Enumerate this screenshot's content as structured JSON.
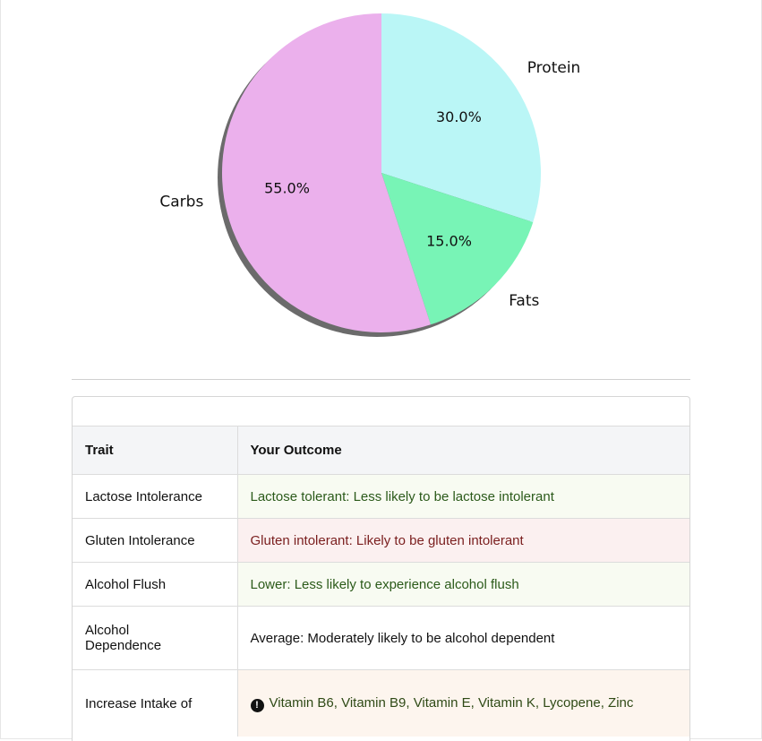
{
  "chart_data": {
    "type": "pie",
    "title": "",
    "slices": [
      {
        "label": "Protein",
        "value": 30.0,
        "pct_label": "30.0%",
        "color": "#baf6f6"
      },
      {
        "label": "Fats",
        "value": 15.0,
        "pct_label": "15.0%",
        "color": "#78f4b6"
      },
      {
        "label": "Carbs",
        "value": 55.0,
        "pct_label": "55.0%",
        "color": "#ebb0ec"
      }
    ],
    "start_angle_deg": 90,
    "direction": "clockwise",
    "shadow": true
  },
  "table": {
    "headers": {
      "trait": "Trait",
      "outcome": "Your Outcome"
    },
    "rows": [
      {
        "trait": "Lactose Intolerance",
        "outcome": "Lactose tolerant: Less likely to be lactose intolerant",
        "status": "good"
      },
      {
        "trait": "Gluten Intolerance",
        "outcome": "Gluten intolerant: Likely to be gluten intolerant",
        "status": "bad"
      },
      {
        "trait": "Alcohol Flush",
        "outcome": "Lower: Less likely to experience alcohol flush",
        "status": "good"
      },
      {
        "trait": "Alcohol Dependence",
        "outcome": "Average: Moderately likely to be alcohol dependent",
        "status": "neutral"
      },
      {
        "trait": "Increase Intake of",
        "outcome": "Vitamin B6, Vitamin B9, Vitamin E, Vitamin K, Lycopene, Zinc",
        "status": "warn",
        "icon": "exclamation-circle-icon"
      }
    ]
  }
}
